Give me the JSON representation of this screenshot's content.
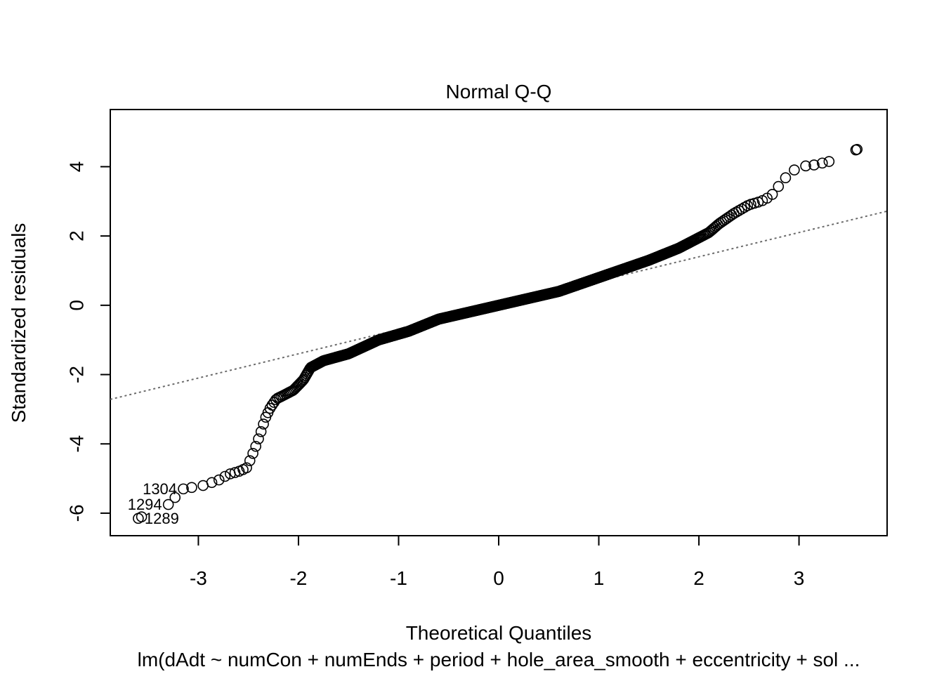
{
  "chart_data": {
    "type": "scatter",
    "title": "Normal Q-Q",
    "xlabel": "Theoretical Quantiles",
    "ylabel": "Standardized residuals",
    "caption": "lm(dAdt ~ numCon + numEnds + period + hole_area_smooth + eccentricity + sol ...",
    "xlim": [
      -3.88,
      3.88
    ],
    "ylim": [
      -6.65,
      5.65
    ],
    "xticks": [
      -3,
      -2,
      -1,
      0,
      1,
      2,
      3
    ],
    "yticks": [
      -6,
      -4,
      -2,
      0,
      2,
      4
    ],
    "reference_line": {
      "slope": 0.7,
      "intercept": 0.0,
      "style": "dotted",
      "color": "#6b6b6b"
    },
    "curve_knots": [
      [
        -3.6,
        -6.15
      ],
      [
        -3.3,
        -5.75
      ],
      [
        -3.15,
        -5.3
      ],
      [
        -2.95,
        -5.2
      ],
      [
        -2.8,
        -5.05
      ],
      [
        -2.7,
        -4.88
      ],
      [
        -2.6,
        -4.8
      ],
      [
        -2.52,
        -4.7
      ],
      [
        -2.48,
        -4.45
      ],
      [
        -2.43,
        -4.1
      ],
      [
        -2.38,
        -3.7
      ],
      [
        -2.33,
        -3.25
      ],
      [
        -2.28,
        -2.95
      ],
      [
        -2.22,
        -2.7
      ],
      [
        -2.15,
        -2.6
      ],
      [
        -2.05,
        -2.45
      ],
      [
        -1.95,
        -2.15
      ],
      [
        -1.88,
        -1.8
      ],
      [
        -1.75,
        -1.6
      ],
      [
        -1.5,
        -1.4
      ],
      [
        -1.2,
        -1.0
      ],
      [
        -0.9,
        -0.75
      ],
      [
        -0.6,
        -0.4
      ],
      [
        -0.3,
        -0.2
      ],
      [
        0.0,
        0.0
      ],
      [
        0.3,
        0.2
      ],
      [
        0.6,
        0.4
      ],
      [
        0.9,
        0.7
      ],
      [
        1.2,
        1.0
      ],
      [
        1.5,
        1.3
      ],
      [
        1.8,
        1.65
      ],
      [
        2.0,
        1.95
      ],
      [
        2.1,
        2.1
      ],
      [
        2.2,
        2.35
      ],
      [
        2.35,
        2.65
      ],
      [
        2.5,
        2.9
      ],
      [
        2.62,
        3.0
      ],
      [
        2.72,
        3.15
      ],
      [
        2.8,
        3.45
      ],
      [
        2.9,
        3.8
      ],
      [
        3.0,
        4.0
      ],
      [
        3.15,
        4.05
      ],
      [
        3.3,
        4.15
      ],
      [
        3.58,
        4.5
      ]
    ],
    "point_count": 1320,
    "labeled_points": [
      {
        "label": "1304",
        "x": -3.15,
        "y": -5.3,
        "label_side": "left"
      },
      {
        "label": "1294",
        "x": -3.3,
        "y": -5.75,
        "label_side": "left"
      },
      {
        "label": "1289",
        "x": -3.6,
        "y": -6.15,
        "label_side": "right"
      }
    ]
  }
}
